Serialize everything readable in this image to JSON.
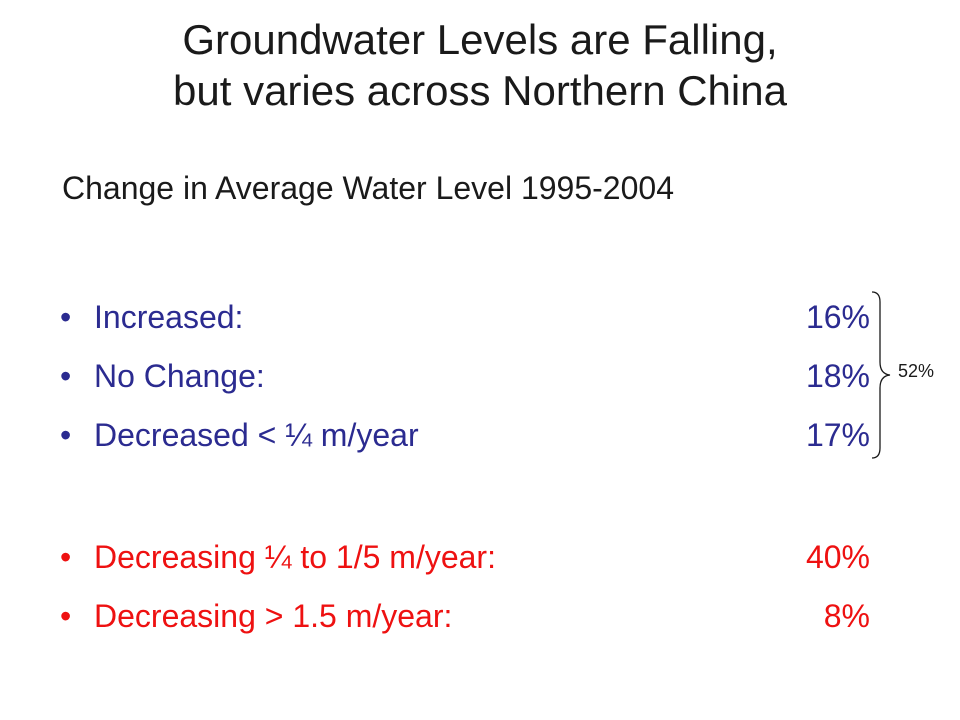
{
  "title": {
    "line1": "Groundwater Levels are Falling,",
    "line2": "but varies across Northern China"
  },
  "subtitle": "Change in Average Water Level 1995-2004",
  "bullet_glyph": "•",
  "items": [
    {
      "label": "Increased:",
      "value": "16%",
      "color": "#2b2b90"
    },
    {
      "label": "No Change:",
      "value": "18%",
      "color": "#2b2b90"
    },
    {
      "label": "Decreased < ¼ m/year",
      "value": "17%",
      "color": "#2b2b90"
    },
    {
      "label": "Decreasing ¼ to 1/5 m/year:",
      "value": "40%",
      "color": "#ee1111"
    },
    {
      "label": "Decreasing > 1.5 m/year:",
      "value": "8%",
      "color": "#ee1111"
    }
  ],
  "brace": {
    "label": "52%"
  }
}
